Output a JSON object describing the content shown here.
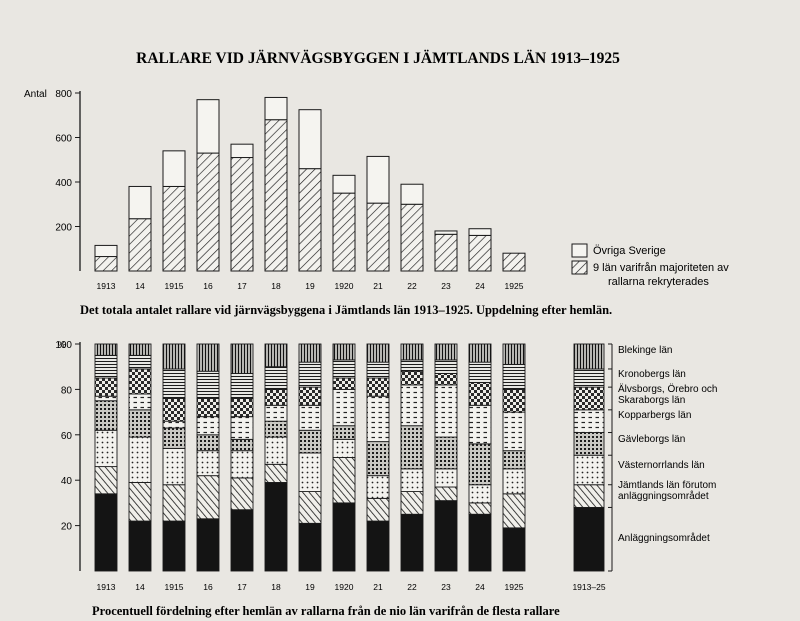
{
  "page": {
    "title": "RALLARE VID JÄRNVÄGSBYGGEN I JÄMTLANDS LÄN 1913–1925",
    "caption_top": "Det totala antalet rallare vid järnvägsbyggena i Jämtlands län 1913–1925. Uppdelning efter hemlän.",
    "caption_bottom": "Procentuell fördelning efter hemlän av rallarna från de nio län varifrån de flesta rallare"
  },
  "chart_data": [
    {
      "type": "bar",
      "stacked": true,
      "ylabel": "Antal",
      "ylim": [
        0,
        800
      ],
      "yticks": [
        "200",
        "400",
        "600",
        "800"
      ],
      "categories": [
        "1913",
        "14",
        "1915",
        "16",
        "17",
        "18",
        "19",
        "1920",
        "21",
        "22",
        "23",
        "24",
        "1925"
      ],
      "series": [
        {
          "name": "9 län varifrån majoriteten av rallarna rekryterades",
          "pattern": "hatch",
          "values": [
            65,
            235,
            380,
            530,
            510,
            680,
            460,
            350,
            305,
            300,
            165,
            160,
            80
          ]
        },
        {
          "name": "Övriga Sverige",
          "pattern": "blank",
          "values": [
            50,
            145,
            160,
            240,
            60,
            100,
            265,
            80,
            210,
            90,
            15,
            30,
            0
          ]
        }
      ],
      "legend": [
        {
          "label": "Övriga Sverige",
          "pattern": "blank"
        },
        {
          "label": "9 län varifrån majoriteten av",
          "label2": "rallarna rekryterades",
          "pattern": "hatch"
        }
      ],
      "legend_position": "right"
    },
    {
      "type": "bar",
      "stacked": true,
      "percent": true,
      "ylabel": "%",
      "ylim": [
        0,
        100
      ],
      "yticks": [
        "20",
        "40",
        "60",
        "80",
        "100"
      ],
      "categories": [
        "1913",
        "14",
        "1915",
        "16",
        "17",
        "18",
        "19",
        "1920",
        "21",
        "22",
        "23",
        "24",
        "1925",
        "1913–25"
      ],
      "series": [
        {
          "name": "Anläggningsområdet",
          "pattern": "solid",
          "values": [
            34,
            22,
            22,
            23,
            27,
            39,
            21,
            30,
            22,
            25,
            31,
            25,
            19,
            28
          ]
        },
        {
          "name": "Jämtlands län förutom anläggningsområdet",
          "pattern": "diag",
          "values": [
            12,
            17,
            16,
            19,
            14,
            8,
            14,
            20,
            10,
            10,
            6,
            5,
            15,
            10
          ]
        },
        {
          "name": "Västernorrlands län",
          "pattern": "dots",
          "values": [
            16,
            20,
            16,
            11,
            12,
            12,
            17,
            8,
            10,
            10,
            8,
            8,
            11,
            13
          ]
        },
        {
          "name": "Gävleborgs län",
          "pattern": "grid",
          "values": [
            13,
            12,
            9,
            7,
            5,
            7,
            10,
            6,
            15,
            19,
            14,
            18,
            8,
            10
          ]
        },
        {
          "name": "Kopparbergs län",
          "pattern": "dashes",
          "values": [
            2,
            7,
            3,
            8,
            10,
            7,
            11,
            16,
            20,
            18,
            23,
            17,
            17,
            10
          ]
        },
        {
          "name": "Älvsborgs, Örebro och Skaraborgs län",
          "pattern": "checker",
          "values": [
            8,
            11,
            10,
            8,
            8,
            7,
            8,
            5,
            8,
            6,
            5,
            10,
            10,
            10
          ]
        },
        {
          "name": "Kronobergs län",
          "pattern": "hlines",
          "values": [
            10,
            6,
            13,
            12,
            11,
            10,
            11,
            8,
            7,
            5,
            6,
            9,
            11,
            8
          ]
        },
        {
          "name": "Blekinge län",
          "pattern": "vlines",
          "values": [
            5,
            5,
            11,
            12,
            13,
            10,
            8,
            7,
            8,
            7,
            7,
            8,
            9,
            11
          ]
        }
      ],
      "legend_position": "right"
    }
  ]
}
